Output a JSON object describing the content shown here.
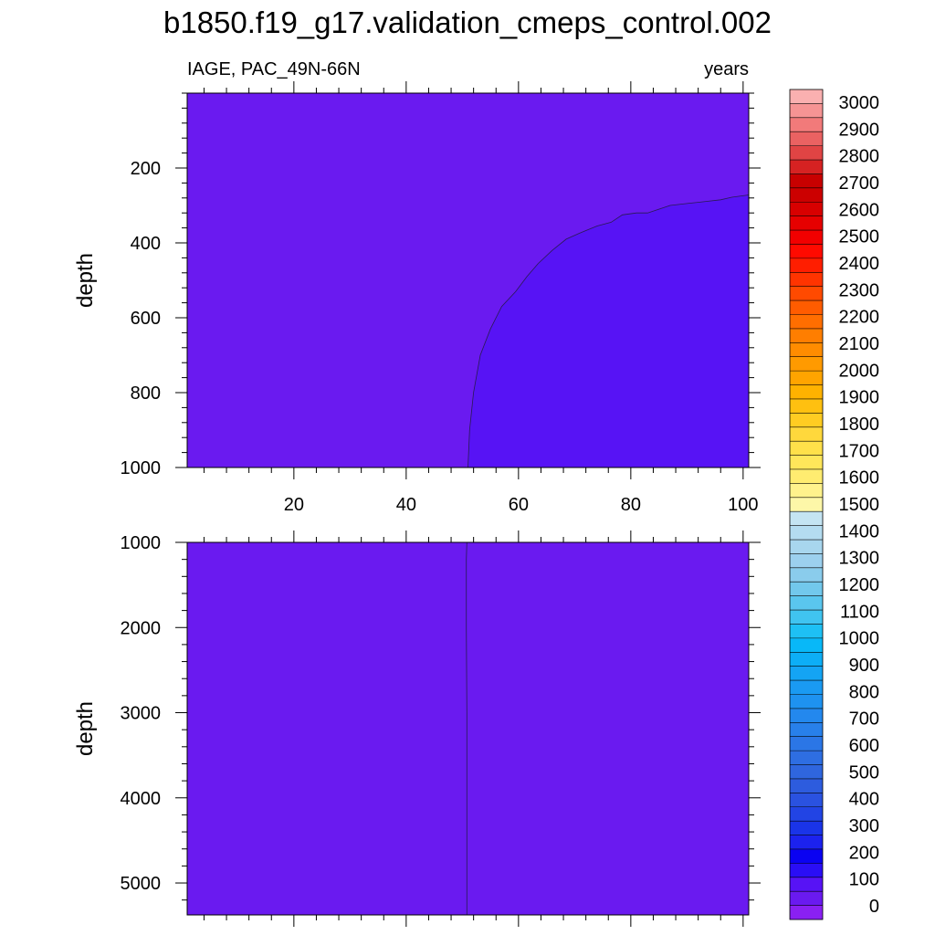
{
  "chart_data": {
    "type": "heatmap",
    "title": "b1850.f19_g17.validation_cmeps_control.002",
    "subtitle_left": "IAGE, PAC_49N-66N",
    "subtitle_right": "years",
    "xlabel": "",
    "ylabel": "depth",
    "x_range": [
      1,
      101
    ],
    "x_ticks": [
      "20",
      "40",
      "60",
      "80",
      "100"
    ],
    "panels": [
      {
        "name": "upper",
        "ylim": [
          0,
          1000
        ],
        "y_ticks": [
          "200",
          "400",
          "600",
          "800",
          "1000"
        ],
        "fill_color": "#6a1af0",
        "region_fill_color": "#5713f5",
        "region_boundary": [
          {
            "x": 51.0,
            "y": 1000
          },
          {
            "x": 51.3,
            "y": 900
          },
          {
            "x": 52.0,
            "y": 800
          },
          {
            "x": 53.2,
            "y": 700
          },
          {
            "x": 55.0,
            "y": 630
          },
          {
            "x": 57.0,
            "y": 570
          },
          {
            "x": 59.5,
            "y": 530
          },
          {
            "x": 61.5,
            "y": 490
          },
          {
            "x": 63.5,
            "y": 455
          },
          {
            "x": 66.0,
            "y": 420
          },
          {
            "x": 68.5,
            "y": 390
          },
          {
            "x": 71.5,
            "y": 370
          },
          {
            "x": 74.0,
            "y": 355
          },
          {
            "x": 76.5,
            "y": 345
          },
          {
            "x": 78.5,
            "y": 325
          },
          {
            "x": 81.0,
            "y": 320
          },
          {
            "x": 83.0,
            "y": 320
          },
          {
            "x": 85.0,
            "y": 310
          },
          {
            "x": 87.0,
            "y": 300
          },
          {
            "x": 90.0,
            "y": 295
          },
          {
            "x": 93.0,
            "y": 290
          },
          {
            "x": 96.0,
            "y": 285
          },
          {
            "x": 98.0,
            "y": 278
          },
          {
            "x": 101.0,
            "y": 272
          }
        ]
      },
      {
        "name": "lower",
        "ylim": [
          1000,
          5375
        ],
        "y_ticks": [
          "1000",
          "2000",
          "3000",
          "4000",
          "5000"
        ],
        "fill_color": "#6a1af0",
        "region_fill_color": "#5713f5",
        "region_boundary": [
          {
            "x": 50.8,
            "y": 1000
          },
          {
            "x": 50.7,
            "y": 1200
          },
          {
            "x": 50.7,
            "y": 2000
          },
          {
            "x": 50.8,
            "y": 3000
          },
          {
            "x": 50.8,
            "y": 5375
          }
        ]
      }
    ],
    "colorbar": {
      "labels": [
        "0",
        "100",
        "200",
        "300",
        "400",
        "500",
        "600",
        "700",
        "800",
        "900",
        "1000",
        "1100",
        "1200",
        "1300",
        "1400",
        "1500",
        "1600",
        "1700",
        "1800",
        "1900",
        "2000",
        "2100",
        "2200",
        "2300",
        "2400",
        "2500",
        "2600",
        "2700",
        "2800",
        "2900",
        "3000"
      ],
      "colors": [
        "#8a20f2",
        "#6a1af0",
        "#5713f5",
        "#2a0ef5",
        "#0a02f2",
        "#1c22ee",
        "#1a34e8",
        "#2244e4",
        "#2a52e0",
        "#2d5cde",
        "#2f66de",
        "#2e6ee2",
        "#2b76e6",
        "#2880ea",
        "#2388ee",
        "#1e92f0",
        "#1a9af2",
        "#14a4f4",
        "#0daef6",
        "#08b8f8",
        "#1ec0f4",
        "#40c4f0",
        "#5ac6ee",
        "#72c8ec",
        "#8accec",
        "#9cd0ee",
        "#a8d6ee",
        "#b4dcf0",
        "#c4e4f2",
        "#fdf7a8",
        "#fff28c",
        "#ffec70",
        "#ffe65a",
        "#ffe04a",
        "#ffd83c",
        "#ffcc22",
        "#ffc010",
        "#ffb200",
        "#ffa400",
        "#ff9a00",
        "#ff8c00",
        "#ff7e00",
        "#ff6e00",
        "#ff5c00",
        "#ff4a00",
        "#ff3400",
        "#ff1e00",
        "#ff0a00",
        "#f20000",
        "#e60000",
        "#d80000",
        "#cc0000",
        "#c80000",
        "#d62222",
        "#e04444",
        "#ea6262",
        "#f27a7a",
        "#f69494",
        "#fab0b0"
      ]
    }
  }
}
